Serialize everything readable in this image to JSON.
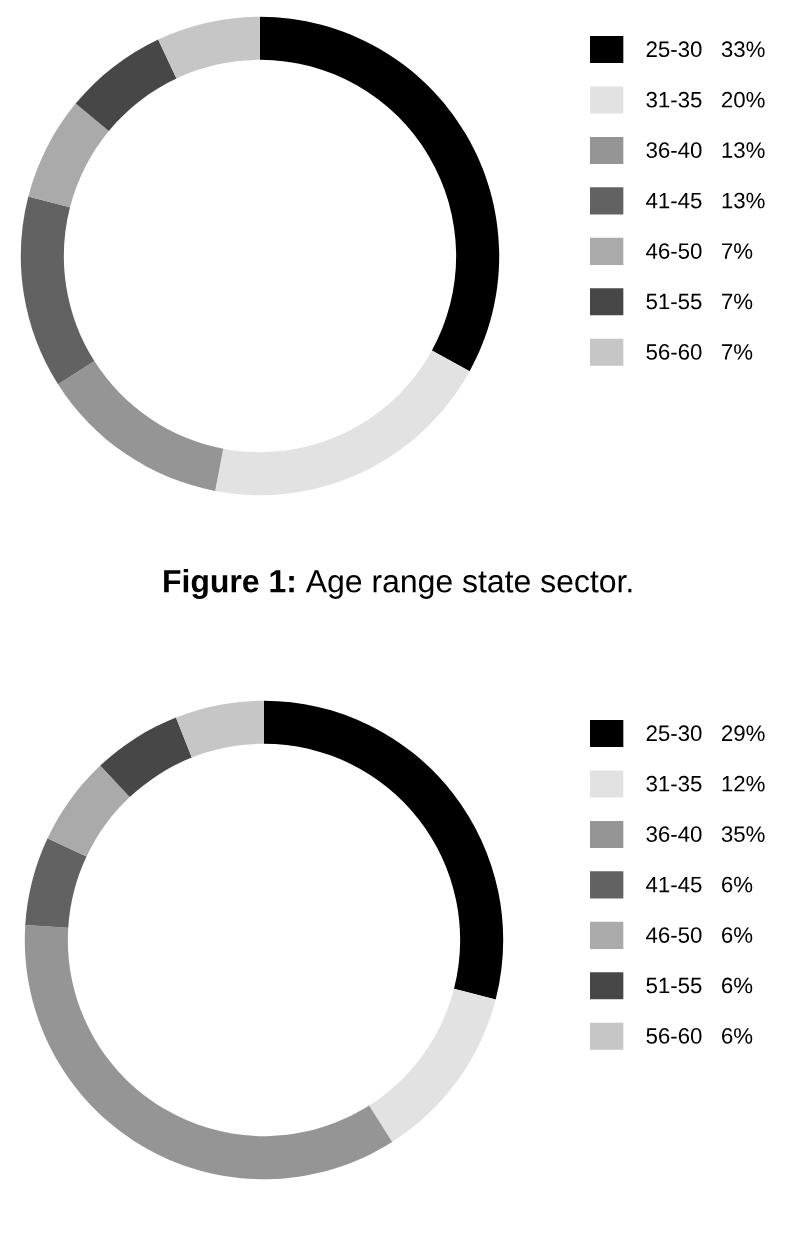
{
  "chart_data": [
    {
      "type": "donut",
      "categories": [
        "25-30",
        "31-35",
        "36-40",
        "41-45",
        "46-50",
        "51-55",
        "56-60"
      ],
      "values": [
        33,
        20,
        13,
        13,
        7,
        7,
        7
      ],
      "value_labels": [
        "33%",
        "20%",
        "13%",
        "13%",
        "7%",
        "7%",
        "7%"
      ],
      "colors": [
        "#000000",
        "#e2e2e2",
        "#959595",
        "#626262",
        "#aaaaaa",
        "#474747",
        "#c6c6c6"
      ],
      "legend": "right",
      "annotations": [
        "Figure 1: Age range state sector."
      ]
    },
    {
      "type": "donut",
      "categories": [
        "25-30",
        "31-35",
        "36-40",
        "41-45",
        "46-50",
        "51-55",
        "56-60"
      ],
      "values": [
        29,
        12,
        35,
        6,
        6,
        6,
        6
      ],
      "value_labels": [
        "29%",
        "12%",
        "35%",
        "6%",
        "6%",
        "6%",
        "6%"
      ],
      "colors": [
        "#000000",
        "#e2e2e2",
        "#959595",
        "#626262",
        "#aaaaaa",
        "#474747",
        "#c6c6c6"
      ],
      "legend": "right"
    }
  ]
}
